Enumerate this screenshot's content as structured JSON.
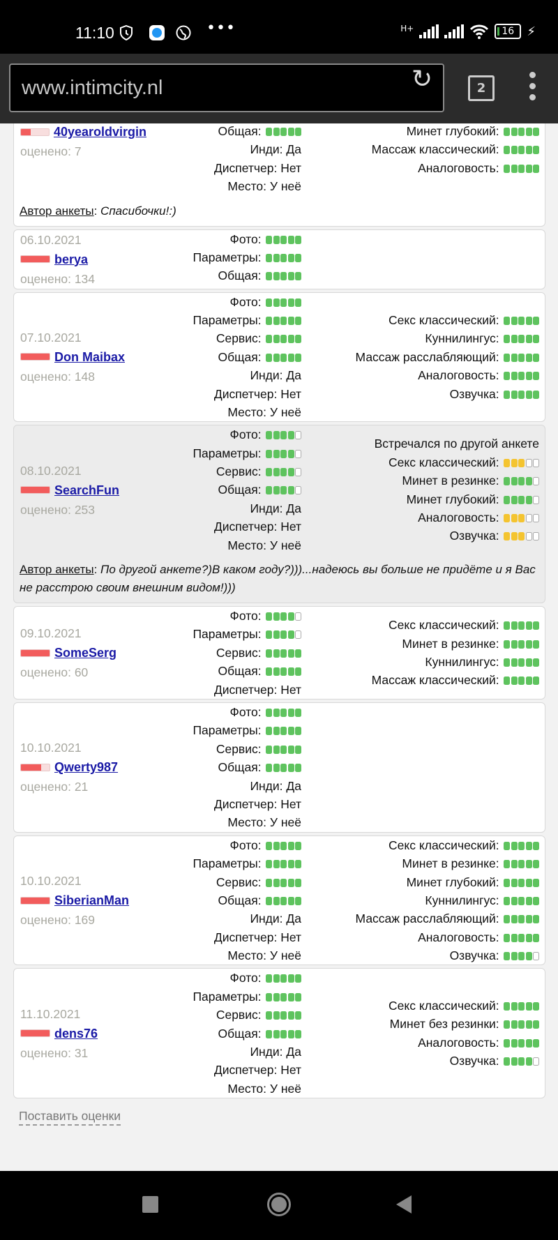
{
  "status_bar": {
    "time": "11:10",
    "network": "H+",
    "battery": "16",
    "icons": [
      "shield-clock-icon",
      "app-bubble-icon",
      "globe-icon",
      "more-dots-icon",
      "signal-icon",
      "signal-icon",
      "wifi-icon",
      "battery-icon",
      "charging-icon"
    ]
  },
  "browser": {
    "url": "www.intimcity.nl",
    "tab_count": "2"
  },
  "colors": {
    "green": "#5ec35e",
    "yellow": "#f4c430",
    "reviewer_bar": "#f25c5c",
    "link": "#1a1aa6"
  },
  "author_label": "Автор анкеты",
  "rated_label": "оценено:",
  "reviews": [
    {
      "date": "",
      "name": "40yearoldvirgin",
      "reputation": 0.35,
      "rated": "7",
      "cut": true,
      "middle": [
        {
          "label": "Общая",
          "score": 5
        },
        {
          "label": "Инди",
          "text": "Да"
        },
        {
          "label": "Диспетчер",
          "text": "Нет"
        },
        {
          "label": "Место",
          "text": "У неё"
        }
      ],
      "right": [
        {
          "label": "Минет глубокий",
          "score": 5
        },
        {
          "label": "Массаж классический",
          "score": 5
        },
        {
          "label": "Аналоговость",
          "score": 5
        }
      ],
      "comment": "Спасибочки!:)"
    },
    {
      "date": "06.10.2021",
      "name": "berya",
      "reputation": 1,
      "rated": "134",
      "middle": [
        {
          "label": "Фото",
          "score": 5
        },
        {
          "label": "Параметры",
          "score": 5
        },
        {
          "label": "Общая",
          "score": 5
        }
      ],
      "right": []
    },
    {
      "date": "07.10.2021",
      "name": "Don Maibax",
      "reputation": 1,
      "rated": "148",
      "middle": [
        {
          "label": "Фото",
          "score": 5
        },
        {
          "label": "Параметры",
          "score": 5
        },
        {
          "label": "Сервис",
          "score": 5
        },
        {
          "label": "Общая",
          "score": 5
        },
        {
          "label": "Инди",
          "text": "Да"
        },
        {
          "label": "Диспетчер",
          "text": "Нет"
        },
        {
          "label": "Место",
          "text": "У неё"
        }
      ],
      "right": [
        {
          "label": "Секс классический",
          "score": 5
        },
        {
          "label": "Куннилингус",
          "score": 5
        },
        {
          "label": "Массаж расслабляющий",
          "score": 5
        },
        {
          "label": "Аналоговость",
          "score": 5
        },
        {
          "label": "Озвучка",
          "score": 5
        }
      ]
    },
    {
      "date": "08.10.2021",
      "name": "SearchFun",
      "reputation": 1,
      "rated": "253",
      "highlighted": true,
      "middle": [
        {
          "label": "Фото",
          "score": 4
        },
        {
          "label": "Параметры",
          "score": 4
        },
        {
          "label": "Сервис",
          "score": 4
        },
        {
          "label": "Общая",
          "score": 4
        },
        {
          "label": "Инди",
          "text": "Да"
        },
        {
          "label": "Диспетчер",
          "text": "Нет"
        },
        {
          "label": "Место",
          "text": "У неё"
        }
      ],
      "right_note": "Встречался по другой анкете",
      "right": [
        {
          "label": "Секс классический",
          "score": 3,
          "color": "yellow"
        },
        {
          "label": "Минет в резинке",
          "score": 4
        },
        {
          "label": "Минет глубокий",
          "score": 4
        },
        {
          "label": "Аналоговость",
          "score": 3,
          "color": "yellow"
        },
        {
          "label": "Озвучка",
          "score": 3,
          "color": "yellow"
        }
      ],
      "comment": "По другой анкете?)В каком году?)))...надеюсь вы больше не придёте и я Вас не расстрою своим внешним видом!)))"
    },
    {
      "date": "09.10.2021",
      "name": "SomeSerg",
      "reputation": 1,
      "rated": "60",
      "middle": [
        {
          "label": "Фото",
          "score": 4
        },
        {
          "label": "Параметры",
          "score": 4
        },
        {
          "label": "Сервис",
          "score": 5
        },
        {
          "label": "Общая",
          "score": 5
        },
        {
          "label": "Диспетчер",
          "text": "Нет"
        }
      ],
      "right": [
        {
          "label": "Секс классический",
          "score": 5
        },
        {
          "label": "Минет в резинке",
          "score": 5
        },
        {
          "label": "Куннилингус",
          "score": 5
        },
        {
          "label": "Массаж классический",
          "score": 5
        }
      ]
    },
    {
      "date": "10.10.2021",
      "name": "Qwerty987",
      "reputation": 0.7,
      "rated": "21",
      "middle": [
        {
          "label": "Фото",
          "score": 5
        },
        {
          "label": "Параметры",
          "score": 5
        },
        {
          "label": "Сервис",
          "score": 5
        },
        {
          "label": "Общая",
          "score": 5
        },
        {
          "label": "Инди",
          "text": "Да"
        },
        {
          "label": "Диспетчер",
          "text": "Нет"
        },
        {
          "label": "Место",
          "text": "У неё"
        }
      ],
      "right": []
    },
    {
      "date": "10.10.2021",
      "name": "SiberianMan",
      "reputation": 1,
      "rated": "169",
      "middle": [
        {
          "label": "Фото",
          "score": 5
        },
        {
          "label": "Параметры",
          "score": 5
        },
        {
          "label": "Сервис",
          "score": 5
        },
        {
          "label": "Общая",
          "score": 5
        },
        {
          "label": "Инди",
          "text": "Да"
        },
        {
          "label": "Диспетчер",
          "text": "Нет"
        },
        {
          "label": "Место",
          "text": "У неё"
        }
      ],
      "right": [
        {
          "label": "Секс классический",
          "score": 5
        },
        {
          "label": "Минет в резинке",
          "score": 5
        },
        {
          "label": "Минет глубокий",
          "score": 5
        },
        {
          "label": "Куннилингус",
          "score": 5
        },
        {
          "label": "Массаж расслабляющий",
          "score": 5
        },
        {
          "label": "Аналоговость",
          "score": 5
        },
        {
          "label": "Озвучка",
          "score": 4
        }
      ]
    },
    {
      "date": "11.10.2021",
      "name": "dens76",
      "reputation": 1,
      "rated": "31",
      "middle": [
        {
          "label": "Фото",
          "score": 5
        },
        {
          "label": "Параметры",
          "score": 5
        },
        {
          "label": "Сервис",
          "score": 5
        },
        {
          "label": "Общая",
          "score": 5
        },
        {
          "label": "Инди",
          "text": "Да"
        },
        {
          "label": "Диспетчер",
          "text": "Нет"
        },
        {
          "label": "Место",
          "text": "У неё"
        }
      ],
      "right": [
        {
          "label": "Секс классический",
          "score": 5
        },
        {
          "label": "Минет без резинки",
          "score": 5
        },
        {
          "label": "Аналоговость",
          "score": 5
        },
        {
          "label": "Озвучка",
          "score": 4
        }
      ]
    }
  ],
  "rate_link": "Поставить оценки"
}
